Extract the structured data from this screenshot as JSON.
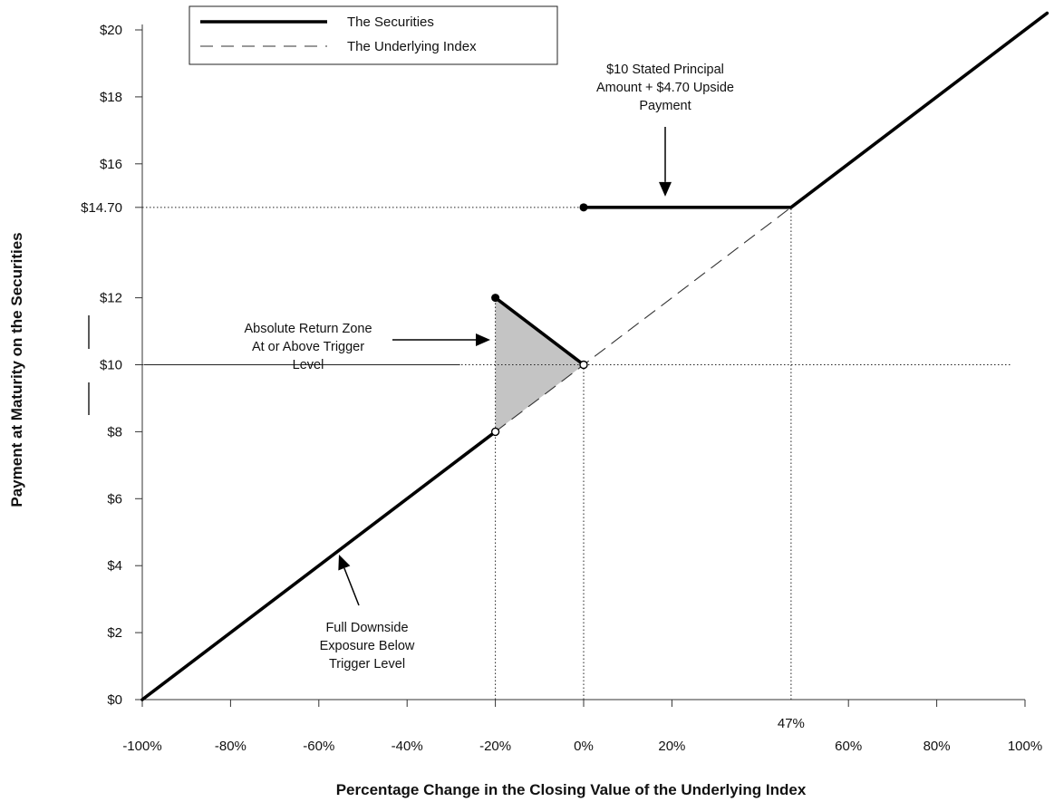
{
  "chart_data": {
    "type": "line",
    "title": "",
    "xlabel": "Percentage Change in the Closing Value of the Underlying Index",
    "ylabel": "Payment at Maturity on the Securities",
    "xlim": [
      -100,
      105
    ],
    "ylim": [
      0,
      20.4
    ],
    "x_ticks": [
      {
        "value": -100,
        "label": "-100%"
      },
      {
        "value": -80,
        "label": "-80%"
      },
      {
        "value": -60,
        "label": "-60%"
      },
      {
        "value": -40,
        "label": "-40%"
      },
      {
        "value": -20,
        "label": "-20%"
      },
      {
        "value": 0,
        "label": "0%"
      },
      {
        "value": 20,
        "label": "20%"
      },
      {
        "value": 60,
        "label": "60%"
      },
      {
        "value": 80,
        "label": "80%"
      },
      {
        "value": 100,
        "label": "100%"
      }
    ],
    "x_extra_label": {
      "value": 47,
      "label": "47%"
    },
    "y_ticks": [
      {
        "value": 0,
        "label": "$0"
      },
      {
        "value": 2,
        "label": "$2"
      },
      {
        "value": 4,
        "label": "$4"
      },
      {
        "value": 6,
        "label": "$6"
      },
      {
        "value": 8,
        "label": "$8"
      },
      {
        "value": 10,
        "label": "$10"
      },
      {
        "value": 12,
        "label": "$12"
      },
      {
        "value": 14.7,
        "label": "$14.70"
      },
      {
        "value": 16,
        "label": "$16"
      },
      {
        "value": 18,
        "label": "$18"
      },
      {
        "value": 20,
        "label": "$20"
      }
    ],
    "legend": {
      "placement": "top-left",
      "entries": [
        {
          "label": "The Securities",
          "style": "solid"
        },
        {
          "label": "The Underlying Index",
          "style": "dashed"
        }
      ]
    },
    "series": [
      {
        "name": "The Securities",
        "segments": [
          [
            [
              -100,
              0
            ],
            [
              -20,
              8
            ]
          ],
          [
            [
              -20,
              12
            ],
            [
              0,
              10
            ]
          ],
          [
            [
              0,
              14.7
            ],
            [
              47,
              14.7
            ],
            [
              105,
              20.5
            ]
          ]
        ]
      },
      {
        "name": "The Underlying Index",
        "segments": [
          [
            [
              -20,
              8
            ],
            [
              47,
              14.7
            ]
          ]
        ]
      }
    ],
    "shaded_region": [
      [
        -20,
        8
      ],
      [
        -20,
        12
      ],
      [
        0,
        10
      ]
    ],
    "markers": {
      "filled": [
        [
          -20,
          12
        ],
        [
          0,
          14.7
        ]
      ],
      "open": [
        [
          -20,
          8
        ],
        [
          0,
          10
        ]
      ]
    },
    "reference_lines": {
      "horizontal": [
        {
          "y": 14.7,
          "x_from": -100,
          "x_to": 47
        },
        {
          "y": 10,
          "x_from": -100,
          "x_to": 97
        }
      ],
      "vertical": [
        {
          "x": -20,
          "y_from": 0,
          "y_to": 12
        },
        {
          "x": 0,
          "y_from": 0,
          "y_to": 10
        },
        {
          "x": 47,
          "y_from": 0,
          "y_to": 14.7
        }
      ]
    },
    "annotations": [
      {
        "lines": [
          "$10 Stated Principal",
          "Amount + $4.70 Upside",
          "Payment"
        ],
        "arrow_to": [
          20,
          14.7
        ]
      },
      {
        "lines": [
          "Absolute Return Zone",
          "At or Above Trigger",
          "Level"
        ],
        "arrow_to": [
          -22,
          11
        ]
      },
      {
        "lines": [
          "Full Downside",
          "Exposure Below",
          "Trigger Level"
        ],
        "arrow_to": [
          -56,
          4.5
        ]
      }
    ]
  }
}
